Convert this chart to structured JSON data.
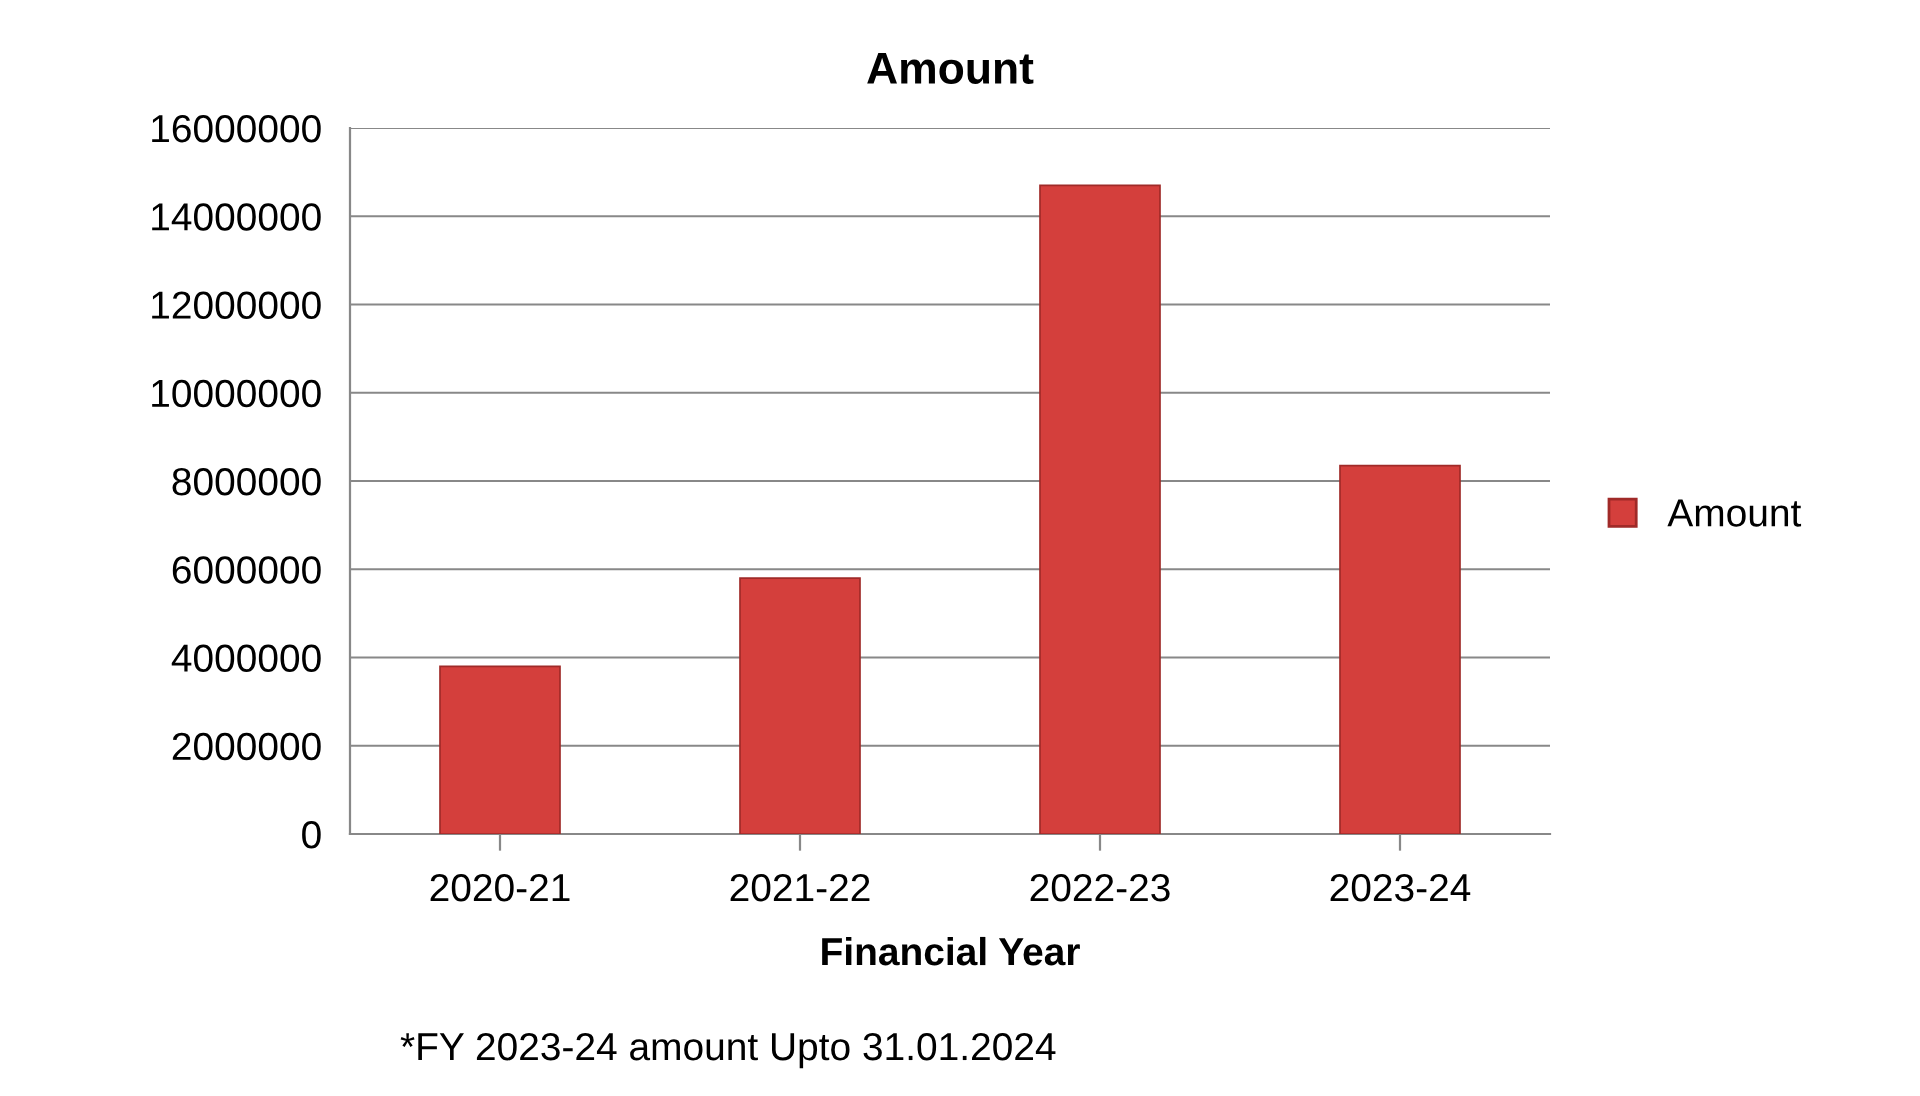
{
  "chart_data": {
    "type": "bar",
    "title": "Amount",
    "xlabel": "Financial Year",
    "categories": [
      "2020-21",
      "2021-22",
      "2022-23",
      "2023-24"
    ],
    "series": [
      {
        "name": "Amount",
        "color": "#d43f3c",
        "values": [
          3800000,
          5800000,
          14700000,
          8350000
        ]
      }
    ],
    "ylim": [
      0,
      16000000
    ],
    "yticks": [
      0,
      2000000,
      4000000,
      6000000,
      8000000,
      10000000,
      12000000,
      14000000,
      16000000
    ],
    "grid": "y",
    "legend": "right",
    "annotations": [
      "*FY 2023-24 amount Upto 31.01.2024"
    ]
  }
}
